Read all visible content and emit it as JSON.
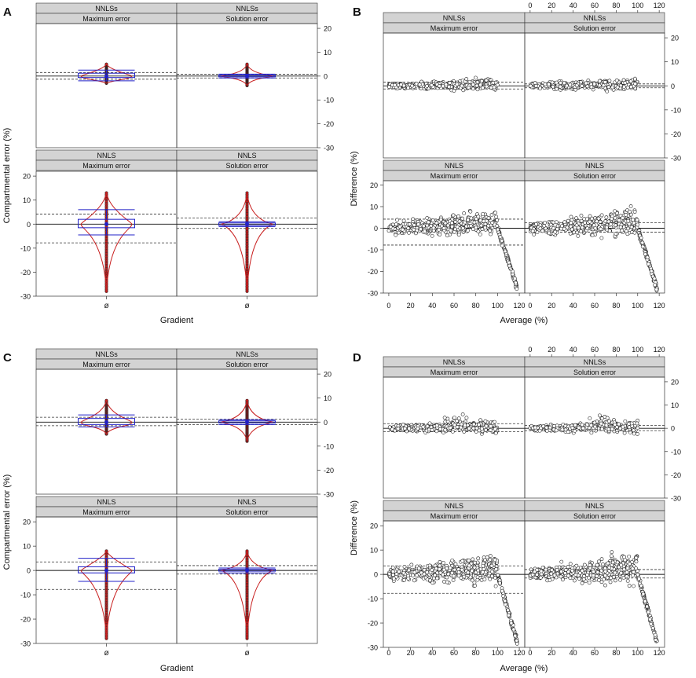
{
  "figure": {
    "panel_letters": [
      "A",
      "B",
      "C",
      "D"
    ],
    "strip_top": [
      "NNLSs",
      "NNLSs",
      "NNLS",
      "NNLS"
    ],
    "strip_bottom": [
      "Maximum error",
      "Solution error",
      "Maximum error",
      "Solution error"
    ],
    "colors": {
      "strip": "#d3d3d3",
      "box": "#2020c8",
      "violin": "#c81e1e",
      "point": "#ffffff"
    }
  },
  "chart_data": [
    {
      "panel": "A",
      "type": "box",
      "xlabel": "Gradient",
      "ylabel": "Compartmental error (%)",
      "x_tick_label": "ø",
      "ylim": [
        -30,
        22
      ],
      "y_ticks": [
        -30,
        -20,
        -10,
        0,
        10,
        20
      ],
      "right_axis_ticks": [
        -30,
        -20,
        -10,
        0,
        10,
        20
      ],
      "panels": [
        {
          "strip": [
            "NNLSs",
            "Maximum error"
          ],
          "q1": -0.6,
          "median": 0,
          "q3": 1.2,
          "whisker_low": -2,
          "whisker_high": 2.5,
          "min": -3,
          "max": 5,
          "ref_lines": [
            1.5,
            -1.3
          ]
        },
        {
          "strip": [
            "NNLSs",
            "Solution error"
          ],
          "q1": -0.3,
          "median": 0,
          "q3": 0.4,
          "whisker_low": -0.8,
          "whisker_high": 0.8,
          "min": -4,
          "max": 5,
          "ref_lines": [
            0.8,
            -0.8
          ]
        },
        {
          "strip": [
            "NNLS",
            "Maximum error"
          ],
          "q1": -1.5,
          "median": 0,
          "q3": 2,
          "whisker_low": -4.5,
          "whisker_high": 6,
          "min": -28,
          "max": 13,
          "ref_lines": [
            4.2,
            -7.8
          ]
        },
        {
          "strip": [
            "NNLS",
            "Solution error"
          ],
          "q1": -0.5,
          "median": 0,
          "q3": 0.5,
          "whisker_low": -1,
          "whisker_high": 1,
          "min": -28,
          "max": 13,
          "ref_lines": [
            2.5,
            -1.8
          ]
        }
      ]
    },
    {
      "panel": "B",
      "type": "scatter",
      "xlabel": "Average (%)",
      "ylabel": "Difference (%)",
      "xlim": [
        -5,
        125
      ],
      "x_ticks": [
        0,
        20,
        40,
        60,
        80,
        100,
        120
      ],
      "ylim": [
        -30,
        22
      ],
      "y_ticks": [
        -30,
        -20,
        -10,
        0,
        10,
        20
      ],
      "panels": [
        {
          "strip": [
            "NNLSs",
            "Maximum error"
          ],
          "ref_lines": [
            1.5,
            -1.3
          ]
        },
        {
          "strip": [
            "NNLSs",
            "Solution error"
          ],
          "ref_lines": [
            0.8,
            -0.8
          ]
        },
        {
          "strip": [
            "NNLS",
            "Maximum error"
          ],
          "ref_lines": [
            4.2,
            -7.8
          ]
        },
        {
          "strip": [
            "NNLS",
            "Solution error"
          ],
          "ref_lines": [
            2.5,
            -1.8
          ]
        }
      ]
    },
    {
      "panel": "C",
      "type": "box",
      "xlabel": "Gradient",
      "ylabel": "Compartmental error (%)",
      "x_tick_label": "ø",
      "ylim": [
        -30,
        22
      ],
      "y_ticks": [
        -30,
        -20,
        -10,
        0,
        10,
        20
      ],
      "right_axis_ticks": [
        -30,
        -20,
        -10,
        0,
        10,
        20
      ],
      "panels": [
        {
          "strip": [
            "NNLSs",
            "Maximum error"
          ],
          "q1": -1,
          "median": 0,
          "q3": 1.5,
          "whisker_low": -2,
          "whisker_high": 3,
          "min": -5,
          "max": 9,
          "ref_lines": [
            2,
            -1.5
          ]
        },
        {
          "strip": [
            "NNLSs",
            "Solution error"
          ],
          "q1": -0.3,
          "median": 0,
          "q3": 0.5,
          "whisker_low": -1,
          "whisker_high": 1,
          "min": -8,
          "max": 9,
          "ref_lines": [
            1.2,
            -1
          ]
        },
        {
          "strip": [
            "NNLS",
            "Maximum error"
          ],
          "q1": -1,
          "median": 0,
          "q3": 1.5,
          "whisker_low": -4.5,
          "whisker_high": 5,
          "min": -28,
          "max": 8,
          "ref_lines": [
            3.5,
            -7.8
          ]
        },
        {
          "strip": [
            "NNLS",
            "Solution error"
          ],
          "q1": -0.3,
          "median": 0,
          "q3": 0.5,
          "whisker_low": -1,
          "whisker_high": 1,
          "min": -28,
          "max": 8,
          "ref_lines": [
            2,
            -1.5
          ]
        }
      ]
    },
    {
      "panel": "D",
      "type": "scatter",
      "xlabel": "Average (%)",
      "ylabel": "Difference (%)",
      "xlim": [
        -5,
        125
      ],
      "x_ticks": [
        0,
        20,
        40,
        60,
        80,
        100,
        120
      ],
      "ylim": [
        -30,
        22
      ],
      "y_ticks": [
        -30,
        -20,
        -10,
        0,
        10,
        20
      ],
      "panels": [
        {
          "strip": [
            "NNLSs",
            "Maximum error"
          ],
          "ref_lines": [
            2,
            -1.5
          ]
        },
        {
          "strip": [
            "NNLSs",
            "Solution error"
          ],
          "ref_lines": [
            1.2,
            -1
          ]
        },
        {
          "strip": [
            "NNLS",
            "Maximum error"
          ],
          "ref_lines": [
            3.5,
            -7.8
          ]
        },
        {
          "strip": [
            "NNLS",
            "Solution error"
          ],
          "ref_lines": [
            2,
            -1.5
          ]
        }
      ]
    }
  ]
}
